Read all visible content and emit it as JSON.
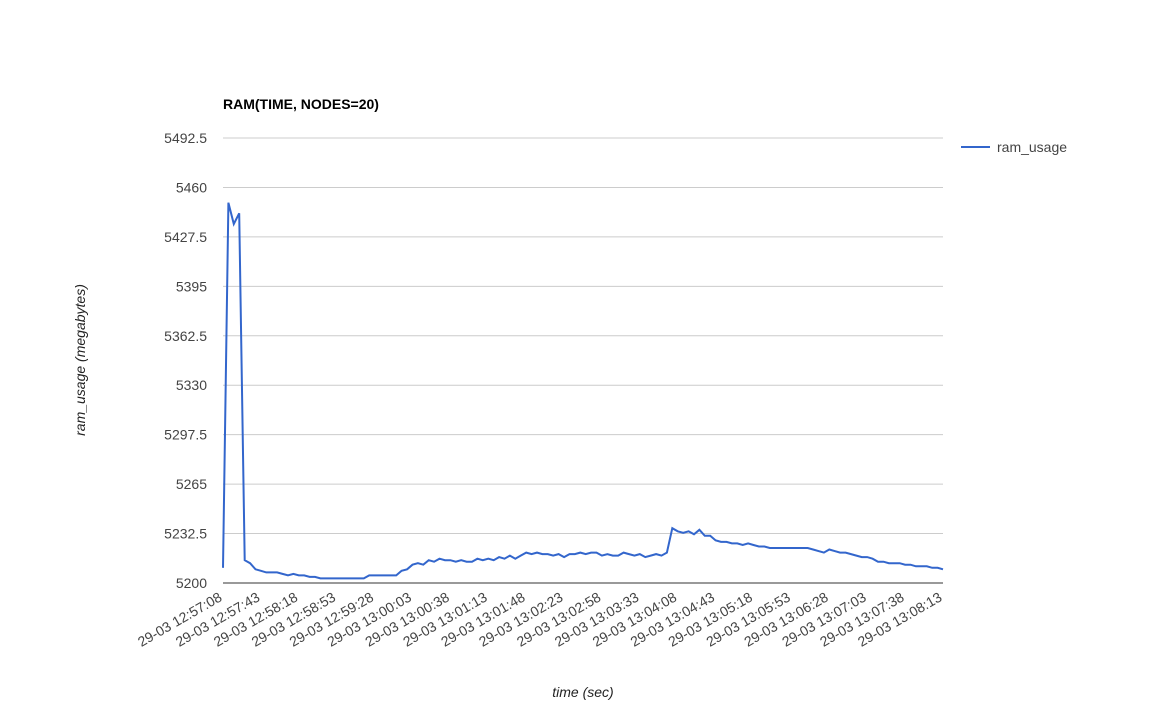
{
  "chart_data": {
    "type": "line",
    "title": "RAM(TIME, NODES=20)",
    "x_label": "time (sec)",
    "y_label": "ram_usage (megabytes)",
    "categories": [
      "29-03 12:57:08",
      null,
      null,
      null,
      null,
      null,
      null,
      "29-03 12:57:43",
      null,
      null,
      null,
      null,
      null,
      null,
      "29-03 12:58:18",
      null,
      null,
      null,
      null,
      null,
      null,
      "29-03 12:58:53",
      null,
      null,
      null,
      null,
      null,
      null,
      "29-03 12:59:28",
      null,
      null,
      null,
      null,
      null,
      null,
      "29-03 13:00:03",
      null,
      null,
      null,
      null,
      null,
      null,
      "29-03 13:00:38",
      null,
      null,
      null,
      null,
      null,
      null,
      "29-03 13:01:13",
      null,
      null,
      null,
      null,
      null,
      null,
      "29-03 13:01:48",
      null,
      null,
      null,
      null,
      null,
      null,
      "29-03 13:02:23",
      null,
      null,
      null,
      null,
      null,
      null,
      "29-03 13:02:58",
      null,
      null,
      null,
      null,
      null,
      null,
      "29-03 13:03:33",
      null,
      null,
      null,
      null,
      null,
      null,
      "29-03 13:04:08",
      null,
      null,
      null,
      null,
      null,
      null,
      "29-03 13:04:43",
      null,
      null,
      null,
      null,
      null,
      null,
      "29-03 13:05:18",
      null,
      null,
      null,
      null,
      null,
      null,
      "29-03 13:05:53",
      null,
      null,
      null,
      null,
      null,
      null,
      "29-03 13:06:28",
      null,
      null,
      null,
      null,
      null,
      null,
      "29-03 13:07:03",
      null,
      null,
      null,
      null,
      null,
      null,
      "29-03 13:07:38",
      null,
      null,
      null,
      null,
      null,
      null,
      "29-03 13:08:13"
    ],
    "series": [
      {
        "name": "ram_usage",
        "color": "#3366cc",
        "values": [
          5210,
          5450,
          5436,
          5443,
          5215,
          5213,
          5209,
          5208,
          5207,
          5207,
          5207,
          5206,
          5205,
          5206,
          5205,
          5205,
          5204,
          5204,
          5203,
          5203,
          5203,
          5203,
          5203,
          5203,
          5203,
          5203,
          5203,
          5205,
          5205,
          5205,
          5205,
          5205,
          5205,
          5208,
          5209,
          5212,
          5213,
          5212,
          5215,
          5214,
          5216,
          5215,
          5215,
          5214,
          5215,
          5214,
          5214,
          5216,
          5215,
          5216,
          5215,
          5217,
          5216,
          5218,
          5216,
          5218,
          5220,
          5219,
          5220,
          5219,
          5219,
          5218,
          5219,
          5217,
          5219,
          5219,
          5220,
          5219,
          5220,
          5220,
          5218,
          5219,
          5218,
          5218,
          5220,
          5219,
          5218,
          5219,
          5217,
          5218,
          5219,
          5218,
          5220,
          5236,
          5234,
          5233,
          5234,
          5232,
          5235,
          5231,
          5231,
          5228,
          5227,
          5227,
          5226,
          5226,
          5225,
          5226,
          5225,
          5224,
          5224,
          5223,
          5223,
          5223,
          5223,
          5223,
          5223,
          5223,
          5223,
          5222,
          5221,
          5220,
          5222,
          5221,
          5220,
          5220,
          5219,
          5218,
          5217,
          5217,
          5216,
          5214,
          5214,
          5213,
          5213,
          5213,
          5212,
          5212,
          5211,
          5211,
          5211,
          5210,
          5210,
          5209
        ]
      }
    ],
    "ylim": [
      5200,
      5492.5
    ],
    "yticks": [
      5200,
      5232.5,
      5265,
      5297.5,
      5330,
      5362.5,
      5395,
      5427.5,
      5460,
      5492.5
    ],
    "grid": true,
    "legend": "right"
  }
}
